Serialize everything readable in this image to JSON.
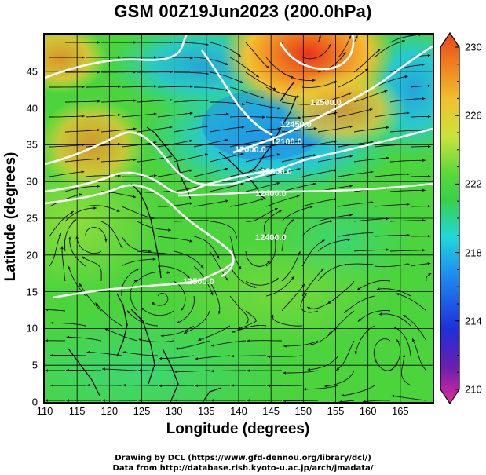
{
  "title": "GSM 00Z19Jun2023 (200.0hPa)",
  "x_axis": {
    "label": "Longitude (degrees)",
    "min": 110,
    "max": 170,
    "ticks": [
      "110",
      "115",
      "120",
      "125",
      "130",
      "135",
      "140",
      "145",
      "150",
      "155",
      "160",
      "165"
    ]
  },
  "y_axis": {
    "label": "Latitude  (degrees)",
    "min": 0,
    "max": 50,
    "ticks": [
      "0",
      "5",
      "10",
      "15",
      "20",
      "25",
      "30",
      "35",
      "40",
      "45"
    ]
  },
  "colorbar": {
    "min": 210,
    "max": 230,
    "labels": [
      "230",
      "226",
      "222",
      "218",
      "214",
      "210"
    ],
    "colors": [
      "#e02a9a",
      "#6a1fb0",
      "#1e2fd8",
      "#1e8ff0",
      "#20d8d8",
      "#3ad04a",
      "#5ad83a",
      "#c8e43a",
      "#f0c030",
      "#f08a20",
      "#e8441c"
    ]
  },
  "contours": {
    "labels": [
      "12500.0",
      "12450.0",
      "12400.0",
      "12300.0",
      "12100.0",
      "12000.0",
      "12400.0",
      "12500.0"
    ]
  },
  "credits": {
    "line1": "Drawing by DCL (https://www.gfd-dennou.org/library/dcl/)",
    "line2": "Data from http://database.rish.kyoto-u.ac.jp/arch/jmadata/"
  }
}
